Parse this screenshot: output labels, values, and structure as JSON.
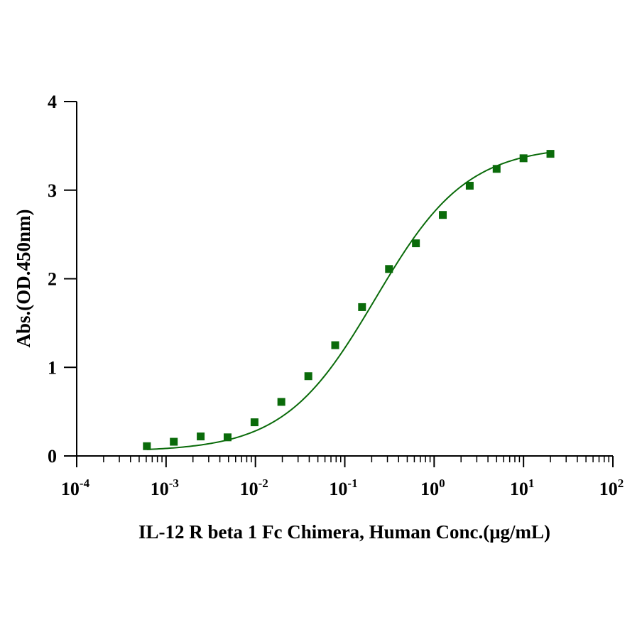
{
  "chart_data": {
    "type": "scatter",
    "title": "",
    "xlabel": "IL-12 R beta 1 Fc Chimera, Human Conc.(μg/mL)",
    "ylabel": "Abs.(OD.450nm)",
    "x_scale": "log",
    "xlim": [
      0.0001,
      100
    ],
    "ylim": [
      0,
      4
    ],
    "x_ticks": [
      {
        "base": "10",
        "exp": "-4"
      },
      {
        "base": "10",
        "exp": "-3"
      },
      {
        "base": "10",
        "exp": "-2"
      },
      {
        "base": "10",
        "exp": "-1"
      },
      {
        "base": "10",
        "exp": "0"
      },
      {
        "base": "10",
        "exp": "1"
      },
      {
        "base": "10",
        "exp": "2"
      }
    ],
    "y_ticks": [
      "0",
      "1",
      "2",
      "3",
      "4"
    ],
    "grid": false,
    "series": [
      {
        "color": "#0a6b0a",
        "marker": "square",
        "x": [
          0.00061,
          0.00122,
          0.00244,
          0.00488,
          0.00977,
          0.0195,
          0.0391,
          0.0781,
          0.156,
          0.3125,
          0.625,
          1.25,
          2.5,
          5,
          10,
          20
        ],
        "y": [
          0.11,
          0.16,
          0.22,
          0.21,
          0.38,
          0.61,
          0.9,
          1.25,
          1.68,
          2.11,
          2.4,
          2.72,
          3.05,
          3.24,
          3.36,
          3.41
        ],
        "fit": "4PL"
      }
    ]
  }
}
